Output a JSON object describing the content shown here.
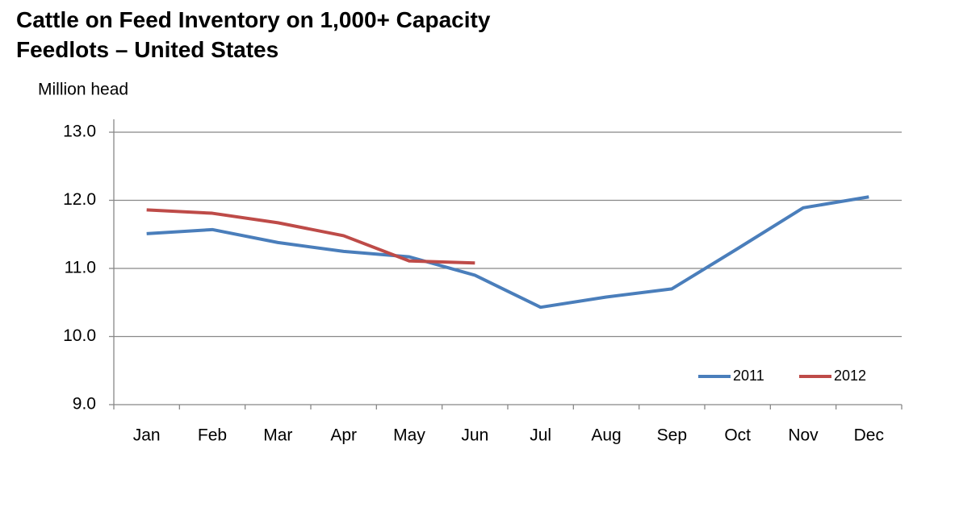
{
  "chart_data": {
    "type": "line",
    "title": "Cattle on Feed Inventory on 1,000+ Capacity Feedlots – United States",
    "y_label": "Million head",
    "categories": [
      "Jan",
      "Feb",
      "Mar",
      "Apr",
      "May",
      "Jun",
      "Jul",
      "Aug",
      "Sep",
      "Oct",
      "Nov",
      "Dec"
    ],
    "series": [
      {
        "name": "2011",
        "color": "#4a7ebb",
        "values": [
          11.51,
          11.57,
          11.38,
          11.25,
          11.17,
          10.9,
          10.43,
          10.58,
          10.7,
          11.29,
          11.89,
          12.05
        ]
      },
      {
        "name": "2012",
        "color": "#be4b48",
        "values": [
          11.86,
          11.81,
          11.67,
          11.48,
          11.11,
          11.08,
          null,
          null,
          null,
          null,
          null,
          null
        ]
      }
    ],
    "ylim": [
      9,
      13
    ],
    "yticks": [
      {
        "value": 9,
        "label": "9.0"
      },
      {
        "value": 10,
        "label": "10.0"
      },
      {
        "value": 11,
        "label": "11.0"
      },
      {
        "value": 12,
        "label": "12.0"
      },
      {
        "value": 13,
        "label": "13.0"
      }
    ],
    "grid": true,
    "legend": "lower right"
  }
}
